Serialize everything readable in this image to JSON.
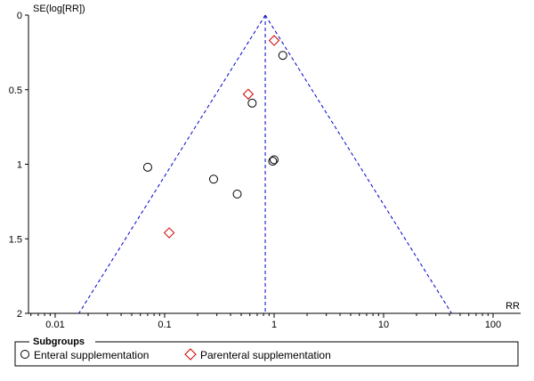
{
  "chart_data": {
    "type": "scatter",
    "subtype": "funnel-plot",
    "title": "",
    "xlabel": "RR",
    "ylabel": "SE(log[RR])",
    "xscale": "log",
    "xlim": [
      0.005,
      150
    ],
    "ylim": [
      0,
      2
    ],
    "y_inverted": true,
    "grid": false,
    "x_ticks": [
      0.01,
      0.1,
      1,
      10,
      100
    ],
    "x_tick_labels": [
      "0.01",
      "0.1",
      "1",
      "10",
      "100"
    ],
    "y_ticks": [
      0,
      0.5,
      1,
      1.5,
      2
    ],
    "y_tick_labels": [
      "0",
      "0.5",
      "1",
      "1.5",
      "2"
    ],
    "pooled_estimate": 0.83,
    "funnel_line_style": "dashed",
    "funnel_color": "#0000cc",
    "legend": {
      "title": "Subgroups",
      "position": "bottom"
    },
    "series": [
      {
        "name": "Enteral supplementation",
        "marker": "circle",
        "color": "#000000",
        "points": [
          {
            "x": 1.2,
            "y": 0.27
          },
          {
            "x": 0.63,
            "y": 0.59
          },
          {
            "x": 0.07,
            "y": 1.02
          },
          {
            "x": 0.97,
            "y": 0.98
          },
          {
            "x": 1.0,
            "y": 0.97
          },
          {
            "x": 0.28,
            "y": 1.1
          },
          {
            "x": 0.46,
            "y": 1.2
          }
        ]
      },
      {
        "name": "Parenteral supplementation",
        "marker": "diamond",
        "color": "#cc0000",
        "points": [
          {
            "x": 1.0,
            "y": 0.17
          },
          {
            "x": 0.58,
            "y": 0.53
          },
          {
            "x": 0.11,
            "y": 1.46
          }
        ]
      }
    ]
  }
}
